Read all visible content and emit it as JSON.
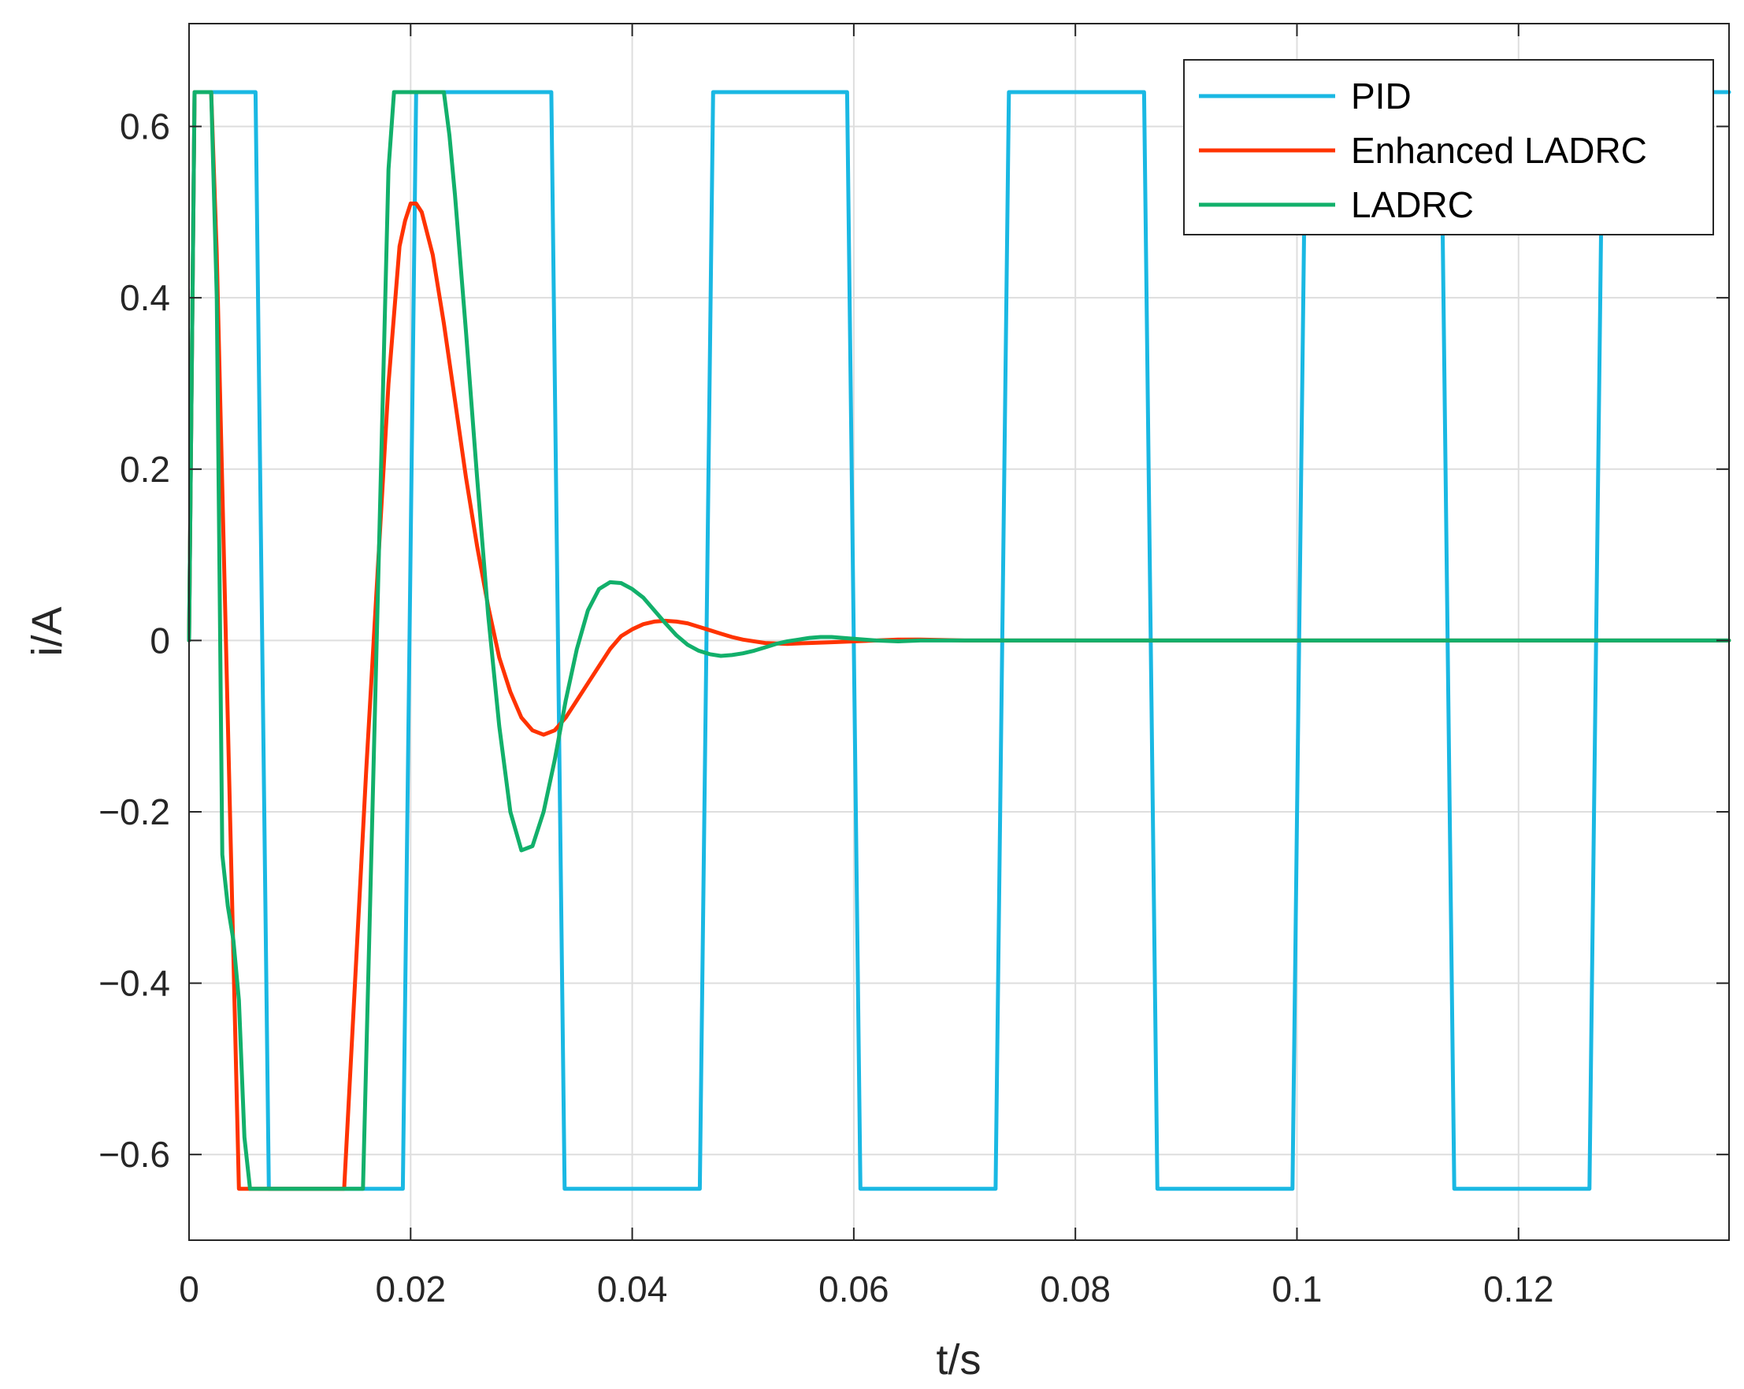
{
  "chart_data": {
    "type": "line",
    "xlabel": "t/s",
    "ylabel": "i/A",
    "xlim": [
      0,
      0.139
    ],
    "ylim": [
      -0.7,
      0.72
    ],
    "xticks": [
      0,
      0.02,
      0.04,
      0.06,
      0.08,
      0.1,
      0.12
    ],
    "xtick_labels": [
      "0",
      "0.02",
      "0.04",
      "0.06",
      "0.08",
      "0.1",
      "0.12"
    ],
    "yticks": [
      0.6,
      0.4,
      0.2,
      0,
      -0.2,
      -0.4,
      -0.6
    ],
    "ytick_labels": [
      "0.6",
      "0.4",
      "0.2",
      "0",
      "−0.2",
      "−0.4",
      "−0.6"
    ],
    "grid": true,
    "legend_position": "top-right",
    "series": [
      {
        "name": "PID",
        "color": "#1ab8e3",
        "x": [
          0,
          0.0005,
          0.006,
          0.0072,
          0.0193,
          0.0205,
          0.0327,
          0.0339,
          0.0461,
          0.0473,
          0.0594,
          0.0606,
          0.0728,
          0.074,
          0.0862,
          0.0874,
          0.0996,
          0.1008,
          0.113,
          0.1142,
          0.1264,
          0.1276,
          0.139
        ],
        "y": [
          0,
          0.64,
          0.64,
          -0.64,
          -0.64,
          0.64,
          0.64,
          -0.64,
          -0.64,
          0.64,
          0.64,
          -0.64,
          -0.64,
          0.64,
          0.64,
          -0.64,
          -0.64,
          0.64,
          0.64,
          -0.64,
          -0.64,
          0.64,
          0.64
        ]
      },
      {
        "name": "Enhanced LADRC",
        "color": "#ff3300",
        "x": [
          0,
          0.0005,
          0.002,
          0.0025,
          0.0045,
          0.014,
          0.016,
          0.018,
          0.019,
          0.0195,
          0.02,
          0.0205,
          0.021,
          0.022,
          0.023,
          0.024,
          0.025,
          0.026,
          0.027,
          0.028,
          0.029,
          0.03,
          0.031,
          0.032,
          0.033,
          0.034,
          0.035,
          0.036,
          0.037,
          0.038,
          0.039,
          0.04,
          0.041,
          0.042,
          0.043,
          0.044,
          0.045,
          0.046,
          0.047,
          0.048,
          0.049,
          0.05,
          0.052,
          0.054,
          0.056,
          0.058,
          0.06,
          0.062,
          0.064,
          0.066,
          0.07,
          0.08,
          0.139
        ],
        "y": [
          0,
          0.64,
          0.64,
          0.45,
          -0.64,
          -0.64,
          -0.15,
          0.3,
          0.46,
          0.49,
          0.51,
          0.51,
          0.5,
          0.45,
          0.37,
          0.28,
          0.19,
          0.11,
          0.04,
          -0.02,
          -0.06,
          -0.09,
          -0.105,
          -0.11,
          -0.105,
          -0.09,
          -0.07,
          -0.05,
          -0.03,
          -0.01,
          0.005,
          0.013,
          0.019,
          0.022,
          0.023,
          0.022,
          0.02,
          0.016,
          0.012,
          0.008,
          0.004,
          0.001,
          -0.003,
          -0.004,
          -0.003,
          -0.002,
          -0.001,
          0,
          0.001,
          0.001,
          0,
          0,
          0
        ]
      },
      {
        "name": "LADRC",
        "color": "#12b06b",
        "x": [
          0,
          0.0005,
          0.002,
          0.0025,
          0.003,
          0.0035,
          0.004,
          0.0045,
          0.005,
          0.0055,
          0.0058,
          0.0157,
          0.018,
          0.0185,
          0.023,
          0.0235,
          0.024,
          0.025,
          0.026,
          0.027,
          0.028,
          0.029,
          0.03,
          0.031,
          0.032,
          0.033,
          0.034,
          0.035,
          0.036,
          0.037,
          0.038,
          0.039,
          0.04,
          0.041,
          0.042,
          0.043,
          0.044,
          0.045,
          0.046,
          0.047,
          0.048,
          0.049,
          0.05,
          0.051,
          0.052,
          0.053,
          0.054,
          0.055,
          0.056,
          0.057,
          0.058,
          0.059,
          0.06,
          0.062,
          0.064,
          0.066,
          0.07,
          0.08,
          0.139
        ],
        "y": [
          0,
          0.64,
          0.64,
          0.4,
          -0.25,
          -0.31,
          -0.35,
          -0.42,
          -0.58,
          -0.64,
          -0.64,
          -0.64,
          0.55,
          0.64,
          0.64,
          0.59,
          0.52,
          0.36,
          0.19,
          0.03,
          -0.1,
          -0.2,
          -0.245,
          -0.24,
          -0.2,
          -0.14,
          -0.07,
          -0.01,
          0.035,
          0.06,
          0.068,
          0.067,
          0.06,
          0.05,
          0.035,
          0.02,
          0.006,
          -0.005,
          -0.012,
          -0.016,
          -0.018,
          -0.017,
          -0.015,
          -0.012,
          -0.008,
          -0.004,
          -0.001,
          0.001,
          0.003,
          0.004,
          0.004,
          0.003,
          0.002,
          0,
          -0.001,
          0,
          0,
          0,
          0
        ]
      }
    ]
  }
}
